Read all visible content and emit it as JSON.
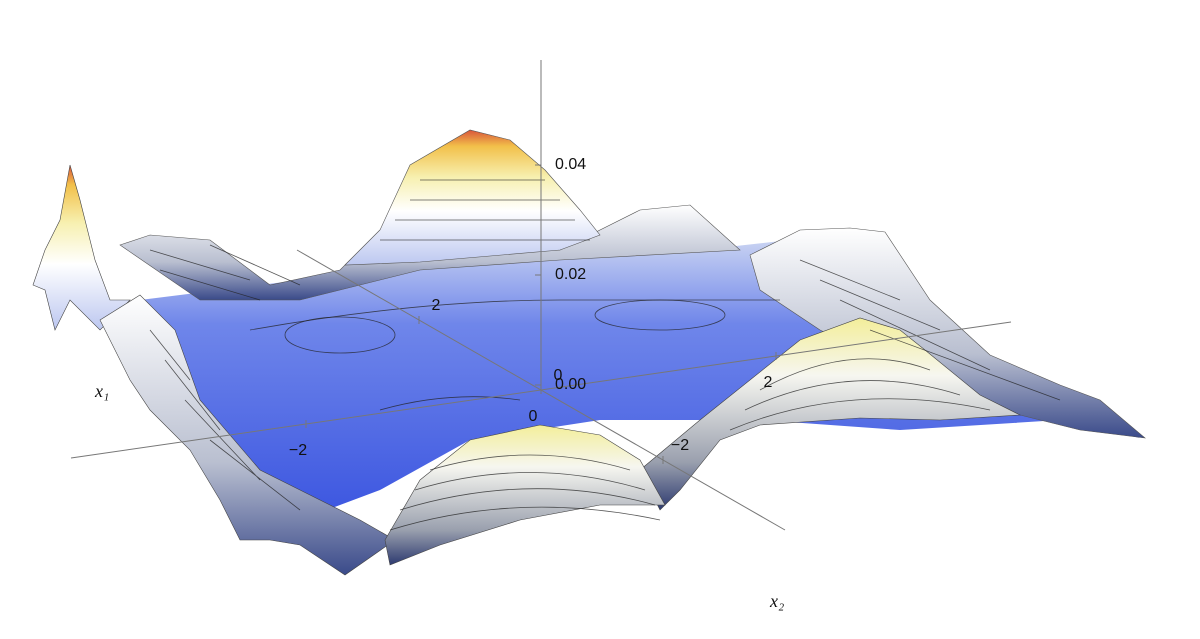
{
  "chart_data": {
    "type": "surface3d",
    "x1_label": "x₁",
    "x2_label": "x₂",
    "x1lim": [
      -4,
      4
    ],
    "x2lim": [
      -4,
      4
    ],
    "zlim": [
      0,
      0.06
    ],
    "x1ticks": [
      {
        "value": -2,
        "label": "−2"
      },
      0,
      2
    ],
    "x2ticks": [
      {
        "value": -2,
        "label": "−2"
      },
      0,
      2
    ],
    "zticks": [
      {
        "value": 0,
        "label": "0.00"
      },
      {
        "value": 0.02,
        "label": "0.02"
      },
      {
        "value": 0.04,
        "label": "0.04"
      }
    ]
  }
}
